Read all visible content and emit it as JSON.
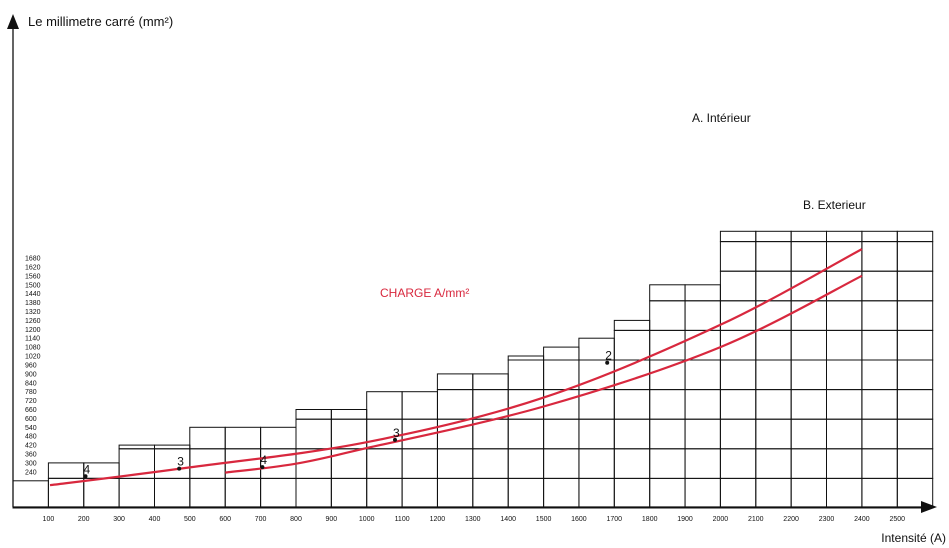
{
  "chart_data": {
    "type": "line",
    "ylabel": "Le millimetre carré (mm²)",
    "xlabel": "Intensité (A)",
    "x_ticks": [
      100,
      200,
      300,
      400,
      500,
      600,
      700,
      800,
      900,
      1000,
      1100,
      1200,
      1300,
      1400,
      1500,
      1600,
      1700,
      1800,
      1900,
      2000,
      2100,
      2200,
      2300,
      2400,
      2500
    ],
    "y_ticks": [
      240,
      300,
      360,
      420,
      480,
      540,
      600,
      660,
      720,
      780,
      840,
      900,
      960,
      1020,
      1080,
      1140,
      1200,
      1260,
      1320,
      1380,
      1440,
      1500,
      1560,
      1620,
      1680
    ],
    "annotation": "CHARGE A/mm²",
    "line_color": "#d8283e",
    "grid": "staircase",
    "staircase_tops": [
      {
        "x_from": 0,
        "x_to": 100,
        "y": 180
      },
      {
        "x_from": 100,
        "x_to": 300,
        "y": 300
      },
      {
        "x_from": 300,
        "x_to": 500,
        "y": 420
      },
      {
        "x_from": 500,
        "x_to": 700,
        "y": 540
      },
      {
        "x_from": 700,
        "x_to": 800,
        "y": 540
      },
      {
        "x_from": 800,
        "x_to": 1000,
        "y": 660
      },
      {
        "x_from": 1000,
        "x_to": 1200,
        "y": 780
      },
      {
        "x_from": 1200,
        "x_to": 1400,
        "y": 900
      },
      {
        "x_from": 1400,
        "x_to": 1500,
        "y": 1020
      },
      {
        "x_from": 1500,
        "x_to": 1600,
        "y": 1080
      },
      {
        "x_from": 1600,
        "x_to": 1700,
        "y": 1140
      },
      {
        "x_from": 1700,
        "x_to": 1800,
        "y": 1260
      },
      {
        "x_from": 1800,
        "x_to": 2000,
        "y": 1500
      },
      {
        "x_from": 2000,
        "x_to": 2600,
        "y": 1860
      }
    ],
    "series": [
      {
        "name": "A. Intérieur",
        "x": [
          0,
          500,
          1000,
          1500,
          2000,
          2400
        ],
        "y": [
          150,
          270,
          440,
          740,
          1230,
          1740
        ]
      },
      {
        "name": "B. Exterieur",
        "x": [
          600,
          800,
          1000,
          1500,
          2000,
          2400
        ],
        "y": [
          235,
          295,
          400,
          680,
          1080,
          1560
        ]
      }
    ],
    "points": [
      {
        "label": "4",
        "x": 205,
        "y": 210
      },
      {
        "label": "3",
        "x": 470,
        "y": 262
      },
      {
        "label": "4",
        "x": 705,
        "y": 272
      },
      {
        "label": "3",
        "x": 1080,
        "y": 455
      },
      {
        "label": "2",
        "x": 1680,
        "y": 975
      }
    ]
  }
}
